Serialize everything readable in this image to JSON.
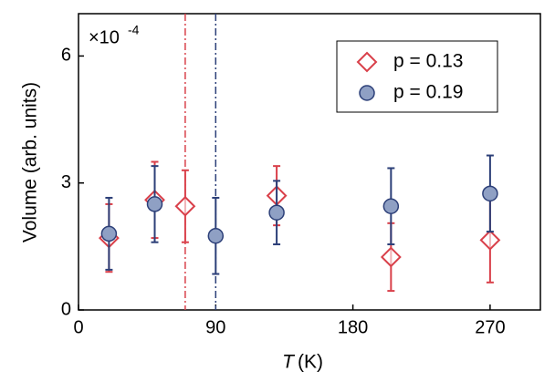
{
  "chart_data": {
    "type": "scatter",
    "x_label": "T",
    "x_unit": "(K)",
    "y_label": "Volume (arb. units)",
    "annotation": "×10",
    "annotation_exponent": "-4",
    "xlim": [
      0,
      303
    ],
    "xticks": [
      0,
      90,
      180,
      270
    ],
    "ylim": [
      0,
      7
    ],
    "yticks": [
      0,
      3,
      6
    ],
    "vlines": [
      {
        "x": 70,
        "color": "#d9404a"
      },
      {
        "x": 90,
        "color": "#2c3f78"
      }
    ],
    "series": [
      {
        "name": "p = 0.13",
        "color": "#d9404a",
        "marker": "diamond",
        "x": [
          20,
          50,
          70,
          130,
          205,
          270
        ],
        "values": [
          1.7,
          2.6,
          2.45,
          2.7,
          1.25,
          1.65
        ],
        "errors": [
          0.8,
          0.9,
          0.85,
          0.7,
          0.8,
          1.0
        ]
      },
      {
        "name": "p = 0.19",
        "color": "#2c3f78",
        "marker": "circle",
        "x": [
          20,
          50,
          90,
          130,
          205,
          270
        ],
        "values": [
          1.8,
          2.5,
          1.75,
          2.3,
          2.45,
          2.75
        ],
        "errors": [
          0.85,
          0.9,
          0.9,
          0.75,
          0.9,
          0.9
        ]
      }
    ],
    "legend": "top-right"
  }
}
